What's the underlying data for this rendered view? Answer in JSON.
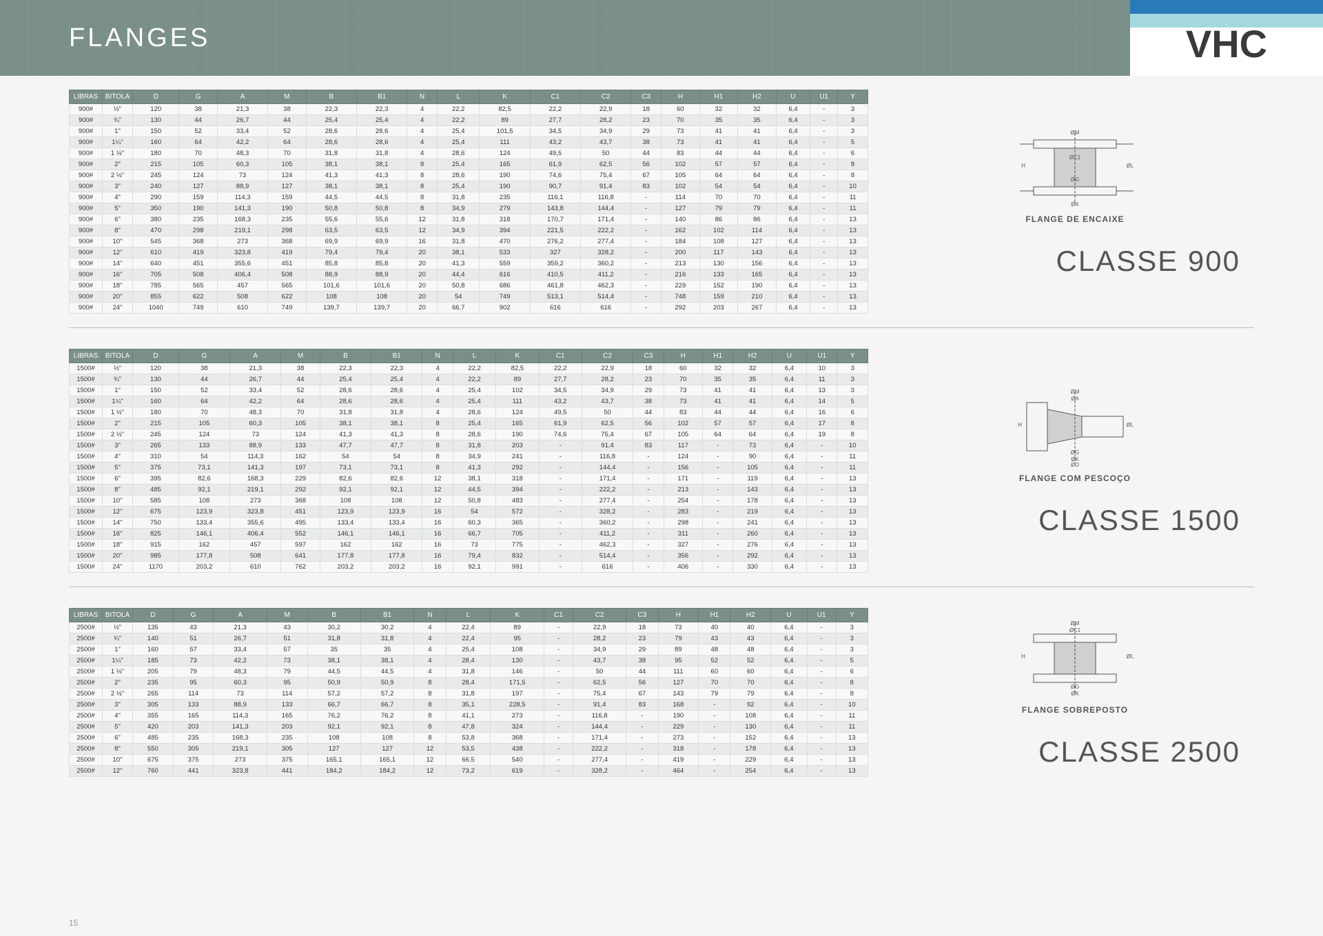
{
  "page_title": "FLANGES",
  "logo_text": "VHC",
  "page_number": "15",
  "stripe_colors": {
    "top": "#2a7ab8",
    "bottom": "#a5d8de"
  },
  "header_bg": "#7a8e8a",
  "columns": [
    "LIBRAS",
    "BITOLA",
    "D",
    "G",
    "A",
    "M",
    "B",
    "B1",
    "N",
    "L",
    "K",
    "C1",
    "C2",
    "C3",
    "H",
    "H1",
    "H2",
    "U",
    "U1",
    "Y"
  ],
  "sections": [
    {
      "class_label": "CLASSE 900",
      "diagram_caption": "FLANGE DE ENCAIXE",
      "rows": [
        [
          "900#",
          "½\"",
          "120",
          "38",
          "21,3",
          "38",
          "22,3",
          "22,3",
          "4",
          "22,2",
          "82,5",
          "22,2",
          "22,9",
          "18",
          "60",
          "32",
          "32",
          "6,4",
          "-",
          "3"
        ],
        [
          "900#",
          "¾\"",
          "130",
          "44",
          "26,7",
          "44",
          "25,4",
          "25,4",
          "4",
          "22,2",
          "89",
          "27,7",
          "28,2",
          "23",
          "70",
          "35",
          "35",
          "6,4",
          "-",
          "3"
        ],
        [
          "900#",
          "1\"",
          "150",
          "52",
          "33,4",
          "52",
          "28,6",
          "28,6",
          "4",
          "25,4",
          "101,5",
          "34,5",
          "34,9",
          "29",
          "73",
          "41",
          "41",
          "6,4",
          "-",
          "3"
        ],
        [
          "900#",
          "1¼\"",
          "160",
          "64",
          "42,2",
          "64",
          "28,6",
          "28,6",
          "4",
          "25,4",
          "111",
          "43,2",
          "43,7",
          "38",
          "73",
          "41",
          "41",
          "6,4",
          "-",
          "5"
        ],
        [
          "900#",
          "1 ½\"",
          "180",
          "70",
          "48,3",
          "70",
          "31,8",
          "31,8",
          "4",
          "28,6",
          "124",
          "49,5",
          "50",
          "44",
          "83",
          "44",
          "44",
          "6,4",
          "-",
          "6"
        ],
        [
          "900#",
          "2\"",
          "215",
          "105",
          "60,3",
          "105",
          "38,1",
          "38,1",
          "8",
          "25,4",
          "165",
          "61,9",
          "62,5",
          "56",
          "102",
          "57",
          "57",
          "6,4",
          "-",
          "8"
        ],
        [
          "900#",
          "2 ½\"",
          "245",
          "124",
          "73",
          "124",
          "41,3",
          "41,3",
          "8",
          "28,6",
          "190",
          "74,6",
          "75,4",
          "67",
          "105",
          "64",
          "64",
          "6,4",
          "-",
          "8"
        ],
        [
          "900#",
          "3\"",
          "240",
          "127",
          "88,9",
          "127",
          "38,1",
          "38,1",
          "8",
          "25,4",
          "190",
          "90,7",
          "91,4",
          "83",
          "102",
          "54",
          "54",
          "6,4",
          "-",
          "10"
        ],
        [
          "900#",
          "4\"",
          "290",
          "159",
          "114,3",
          "159",
          "44,5",
          "44,5",
          "8",
          "31,8",
          "235",
          "116,1",
          "116,8",
          "-",
          "114",
          "70",
          "70",
          "6,4",
          "-",
          "11"
        ],
        [
          "900#",
          "5\"",
          "350",
          "190",
          "141,3",
          "190",
          "50,8",
          "50,8",
          "8",
          "34,9",
          "279",
          "143,8",
          "144,4",
          "-",
          "127",
          "79",
          "79",
          "6,4",
          "-",
          "11"
        ],
        [
          "900#",
          "6\"",
          "380",
          "235",
          "168,3",
          "235",
          "55,6",
          "55,6",
          "12",
          "31,8",
          "318",
          "170,7",
          "171,4",
          "-",
          "140",
          "86",
          "86",
          "6,4",
          "-",
          "13"
        ],
        [
          "900#",
          "8\"",
          "470",
          "298",
          "219,1",
          "298",
          "63,5",
          "63,5",
          "12",
          "34,9",
          "394",
          "221,5",
          "222,2",
          "-",
          "162",
          "102",
          "114",
          "6,4",
          "-",
          "13"
        ],
        [
          "900#",
          "10\"",
          "545",
          "368",
          "273",
          "368",
          "69,9",
          "69,9",
          "16",
          "31,8",
          "470",
          "276,2",
          "277,4",
          "-",
          "184",
          "108",
          "127",
          "6,4",
          "-",
          "13"
        ],
        [
          "900#",
          "12\"",
          "610",
          "419",
          "323,8",
          "419",
          "79,4",
          "79,4",
          "20",
          "38,1",
          "533",
          "327",
          "328,2",
          "-",
          "200",
          "117",
          "143",
          "6,4",
          "-",
          "13"
        ],
        [
          "900#",
          "14\"",
          "640",
          "451",
          "355,6",
          "451",
          "85,8",
          "85,8",
          "20",
          "41,3",
          "559",
          "359,2",
          "360,2",
          "-",
          "213",
          "130",
          "156",
          "6,4",
          "-",
          "13"
        ],
        [
          "900#",
          "16\"",
          "705",
          "508",
          "406,4",
          "508",
          "88,9",
          "88,9",
          "20",
          "44,4",
          "616",
          "410,5",
          "411,2",
          "-",
          "216",
          "133",
          "165",
          "6,4",
          "-",
          "13"
        ],
        [
          "900#",
          "18\"",
          "785",
          "565",
          "457",
          "565",
          "101,6",
          "101,6",
          "20",
          "50,8",
          "686",
          "461,8",
          "462,3",
          "-",
          "229",
          "152",
          "190",
          "6,4",
          "-",
          "13"
        ],
        [
          "900#",
          "20\"",
          "855",
          "622",
          "508",
          "622",
          "108",
          "108",
          "20",
          "54",
          "749",
          "513,1",
          "514,4",
          "-",
          "748",
          "159",
          "210",
          "6,4",
          "-",
          "13"
        ],
        [
          "900#",
          "24\"",
          "1040",
          "749",
          "610",
          "749",
          "139,7",
          "139,7",
          "20",
          "66,7",
          "902",
          "616",
          "616",
          "-",
          "292",
          "203",
          "267",
          "6,4",
          "-",
          "13"
        ]
      ]
    },
    {
      "class_label": "CLASSE 1500",
      "diagram_caption": "FLANGE COM PESCOÇO",
      "rows": [
        [
          "1500#",
          "½\"",
          "120",
          "38",
          "21,3",
          "38",
          "22,3",
          "22,3",
          "4",
          "22,2",
          "82,5",
          "22,2",
          "22,9",
          "18",
          "60",
          "32",
          "32",
          "6,4",
          "10",
          "3"
        ],
        [
          "1500#",
          "¾\"",
          "130",
          "44",
          "26,7",
          "44",
          "25,4",
          "25,4",
          "4",
          "22,2",
          "89",
          "27,7",
          "28,2",
          "23",
          "70",
          "35",
          "35",
          "6,4",
          "11",
          "3"
        ],
        [
          "1500#",
          "1\"",
          "150",
          "52",
          "33,4",
          "52",
          "28,6",
          "28,6",
          "4",
          "25,4",
          "102",
          "34,5",
          "34,9",
          "29",
          "73",
          "41",
          "41",
          "6,4",
          "13",
          "3"
        ],
        [
          "1500#",
          "1¼\"",
          "160",
          "64",
          "42,2",
          "64",
          "28,6",
          "28,6",
          "4",
          "25,4",
          "111",
          "43,2",
          "43,7",
          "38",
          "73",
          "41",
          "41",
          "6,4",
          "14",
          "5"
        ],
        [
          "1500#",
          "1 ½\"",
          "180",
          "70",
          "48,3",
          "70",
          "31,8",
          "31,8",
          "4",
          "28,6",
          "124",
          "49,5",
          "50",
          "44",
          "83",
          "44",
          "44",
          "6,4",
          "16",
          "6"
        ],
        [
          "1500#",
          "2\"",
          "215",
          "105",
          "60,3",
          "105",
          "38,1",
          "38,1",
          "8",
          "25,4",
          "165",
          "61,9",
          "62,5",
          "56",
          "102",
          "57",
          "57",
          "6,4",
          "17",
          "8"
        ],
        [
          "1500#",
          "2 ½\"",
          "245",
          "124",
          "73",
          "124",
          "41,3",
          "41,3",
          "8",
          "28,6",
          "190",
          "74,6",
          "75,4",
          "67",
          "105",
          "64",
          "64",
          "6,4",
          "19",
          "8"
        ],
        [
          "1500#",
          "3\"",
          "265",
          "133",
          "88,9",
          "133",
          "47,7",
          "47,7",
          "8",
          "31,8",
          "203",
          "-",
          "91,4",
          "83",
          "117",
          "-",
          "73",
          "6,4",
          "-",
          "10"
        ],
        [
          "1500#",
          "4\"",
          "310",
          "54",
          "114,3",
          "162",
          "54",
          "54",
          "8",
          "34,9",
          "241",
          "-",
          "116,8",
          "-",
          "124",
          "-",
          "90",
          "6,4",
          "-",
          "11"
        ],
        [
          "1500#",
          "5\"",
          "375",
          "73,1",
          "141,3",
          "197",
          "73,1",
          "73,1",
          "8",
          "41,3",
          "292",
          "-",
          "144,4",
          "-",
          "156",
          "-",
          "105",
          "6,4",
          "-",
          "11"
        ],
        [
          "1500#",
          "6\"",
          "395",
          "82,6",
          "168,3",
          "229",
          "82,6",
          "82,6",
          "12",
          "38,1",
          "318",
          "-",
          "171,4",
          "-",
          "171",
          "-",
          "119",
          "6,4",
          "-",
          "13"
        ],
        [
          "1500#",
          "8\"",
          "485",
          "92,1",
          "219,1",
          "292",
          "92,1",
          "92,1",
          "12",
          "44,5",
          "394",
          "-",
          "222,2",
          "-",
          "213",
          "-",
          "143",
          "6,4",
          "-",
          "13"
        ],
        [
          "1500#",
          "10\"",
          "585",
          "108",
          "273",
          "368",
          "108",
          "108",
          "12",
          "50,8",
          "483",
          "-",
          "277,4",
          "-",
          "254",
          "-",
          "178",
          "6,4",
          "-",
          "13"
        ],
        [
          "1500#",
          "12\"",
          "675",
          "123,9",
          "323,8",
          "451",
          "123,9",
          "123,9",
          "16",
          "54",
          "572",
          "-",
          "328,2",
          "-",
          "283",
          "-",
          "219",
          "6,4",
          "-",
          "13"
        ],
        [
          "1500#",
          "14\"",
          "750",
          "133,4",
          "355,6",
          "495",
          "133,4",
          "133,4",
          "16",
          "60,3",
          "365",
          "-",
          "360,2",
          "-",
          "298",
          "-",
          "241",
          "6,4",
          "-",
          "13"
        ],
        [
          "1500#",
          "16\"",
          "825",
          "146,1",
          "406,4",
          "552",
          "146,1",
          "146,1",
          "16",
          "66,7",
          "705",
          "-",
          "411,2",
          "-",
          "311",
          "-",
          "260",
          "6,4",
          "-",
          "13"
        ],
        [
          "1500#",
          "18\"",
          "915",
          "162",
          "457",
          "597",
          "162",
          "162",
          "16",
          "73",
          "775",
          "-",
          "462,3",
          "-",
          "327",
          "-",
          "276",
          "6,4",
          "-",
          "13"
        ],
        [
          "1500#",
          "20\"",
          "985",
          "177,8",
          "508",
          "641",
          "177,8",
          "177,8",
          "16",
          "79,4",
          "832",
          "-",
          "514,4",
          "-",
          "356",
          "-",
          "292",
          "6,4",
          "-",
          "13"
        ],
        [
          "1500#",
          "24\"",
          "1170",
          "203,2",
          "610",
          "762",
          "203,2",
          "203,2",
          "16",
          "92,1",
          "991",
          "-",
          "616",
          "-",
          "406",
          "-",
          "330",
          "6,4",
          "-",
          "13"
        ]
      ]
    },
    {
      "class_label": "CLASSE 2500",
      "diagram_caption": "FLANGE SOBREPOSTO",
      "rows": [
        [
          "2500#",
          "½\"",
          "135",
          "43",
          "21,3",
          "43",
          "30,2",
          "30,2",
          "4",
          "22,4",
          "89",
          "-",
          "22,9",
          "18",
          "73",
          "40",
          "40",
          "6,4",
          "-",
          "3"
        ],
        [
          "2500#",
          "¾\"",
          "140",
          "51",
          "26,7",
          "51",
          "31,8",
          "31,8",
          "4",
          "22,4",
          "95",
          "-",
          "28,2",
          "23",
          "79",
          "43",
          "43",
          "6,4",
          "-",
          "3"
        ],
        [
          "2500#",
          "1\"",
          "160",
          "57",
          "33,4",
          "57",
          "35",
          "35",
          "4",
          "25,4",
          "108",
          "-",
          "34,9",
          "29",
          "89",
          "48",
          "48",
          "6,4",
          "-",
          "3"
        ],
        [
          "2500#",
          "1¼\"",
          "185",
          "73",
          "42,2",
          "73",
          "38,1",
          "38,1",
          "4",
          "28,4",
          "130",
          "-",
          "43,7",
          "38",
          "95",
          "52",
          "52",
          "6,4",
          "-",
          "5"
        ],
        [
          "2500#",
          "1 ½\"",
          "205",
          "79",
          "48,3",
          "79",
          "44,5",
          "44,5",
          "4",
          "31,8",
          "146",
          "-",
          "50",
          "44",
          "111",
          "60",
          "60",
          "6,4",
          "-",
          "6"
        ],
        [
          "2500#",
          "2\"",
          "235",
          "95",
          "60,3",
          "95",
          "50,9",
          "50,9",
          "8",
          "28,4",
          "171,5",
          "-",
          "62,5",
          "56",
          "127",
          "70",
          "70",
          "6,4",
          "-",
          "8"
        ],
        [
          "2500#",
          "2 ½\"",
          "265",
          "114",
          "73",
          "114",
          "57,2",
          "57,2",
          "8",
          "31,8",
          "197",
          "-",
          "75,4",
          "67",
          "143",
          "79",
          "79",
          "6,4",
          "-",
          "8"
        ],
        [
          "2500#",
          "3\"",
          "305",
          "133",
          "88,9",
          "133",
          "66,7",
          "66,7",
          "8",
          "35,1",
          "228,5",
          "-",
          "91,4",
          "83",
          "168",
          "-",
          "92",
          "6,4",
          "-",
          "10"
        ],
        [
          "2500#",
          "4\"",
          "355",
          "165",
          "114,3",
          "165",
          "76,2",
          "76,2",
          "8",
          "41,1",
          "273",
          "-",
          "116,8",
          "-",
          "190",
          "-",
          "108",
          "6,4",
          "-",
          "11"
        ],
        [
          "2500#",
          "5\"",
          "420",
          "203",
          "141,3",
          "203",
          "92,1",
          "92,1",
          "8",
          "47,8",
          "324",
          "-",
          "144,4",
          "-",
          "229",
          "-",
          "130",
          "6,4",
          "-",
          "11"
        ],
        [
          "2500#",
          "6\"",
          "485",
          "235",
          "168,3",
          "235",
          "108",
          "108",
          "8",
          "53,8",
          "368",
          "-",
          "171,4",
          "-",
          "273",
          "-",
          "152",
          "6,4",
          "-",
          "13"
        ],
        [
          "2500#",
          "8\"",
          "550",
          "305",
          "219,1",
          "305",
          "127",
          "127",
          "12",
          "53,5",
          "438",
          "-",
          "222,2",
          "-",
          "318",
          "-",
          "178",
          "6,4",
          "-",
          "13"
        ],
        [
          "2500#",
          "10\"",
          "675",
          "375",
          "273",
          "375",
          "165,1",
          "165,1",
          "12",
          "66,5",
          "540",
          "-",
          "277,4",
          "-",
          "419",
          "-",
          "229",
          "6,4",
          "-",
          "13"
        ],
        [
          "2500#",
          "12\"",
          "760",
          "441",
          "323,8",
          "441",
          "184,2",
          "184,2",
          "12",
          "73,2",
          "619",
          "-",
          "328,2",
          "-",
          "464",
          "-",
          "254",
          "6,4",
          "-",
          "13"
        ]
      ]
    }
  ]
}
